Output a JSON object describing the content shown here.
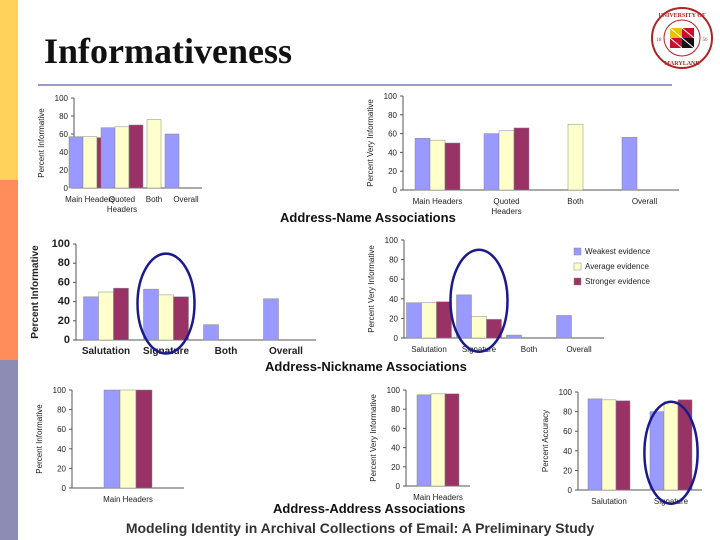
{
  "title": "Informativeness",
  "footer": "Modeling Identity in Archival Collections of Email: A Preliminary Study",
  "logo": {
    "text_top": "UNIVERSITY OF",
    "text_bottom": "MARYLAND",
    "year_left": "18",
    "year_right": "56"
  },
  "colors": {
    "blue": "#9999ff",
    "cream": "#ffffcc",
    "maroon": "#993366",
    "sidebar": [
      "#ffd25a",
      "#ff8c5a",
      "#8c8cb4"
    ],
    "rule": "#9a9acc",
    "ellipse": "#1a1a8c"
  },
  "sections": {
    "name": "Address-Name Associations",
    "nickname": "Address-Nickname Associations",
    "address": "Address-Address Associations"
  },
  "chart_data": [
    {
      "id": "c1",
      "type": "bar",
      "ylabel": "Percent Informative",
      "ylim": [
        0,
        100
      ],
      "yticks": [
        "0",
        "20",
        "40",
        "60",
        "80",
        "100"
      ],
      "categories": [
        "Main Headers",
        "Quoted Headers",
        "Both",
        "Overall"
      ],
      "series": [
        {
          "name": "Weakest evidence",
          "values": [
            57,
            67,
            0,
            60
          ]
        },
        {
          "name": "Average evidence",
          "values": [
            57,
            68,
            76,
            0
          ]
        },
        {
          "name": "Stronger evidence",
          "values": [
            56,
            70,
            0,
            0
          ]
        }
      ]
    },
    {
      "id": "c2",
      "type": "bar",
      "ylabel": "Percent Very Informative",
      "ylim": [
        0,
        100
      ],
      "yticks": [
        "0",
        "20",
        "40",
        "60",
        "80",
        "100"
      ],
      "categories": [
        "Main Headers",
        "Quoted Headers",
        "Both",
        "Overall"
      ],
      "series": [
        {
          "name": "Weakest evidence",
          "values": [
            55,
            60,
            0,
            56
          ]
        },
        {
          "name": "Average evidence",
          "values": [
            53,
            63,
            70,
            0
          ]
        },
        {
          "name": "Stronger evidence",
          "values": [
            50,
            66,
            0,
            0
          ]
        }
      ]
    },
    {
      "id": "c3",
      "type": "bar",
      "ylabel": "Percent Informative",
      "ylim": [
        0,
        100
      ],
      "yticks": [
        "0",
        "20",
        "40",
        "60",
        "80",
        "100"
      ],
      "categories": [
        "Salutation",
        "Signature",
        "Both",
        "Overall"
      ],
      "series": [
        {
          "name": "Weakest evidence",
          "values": [
            45,
            53,
            16,
            43
          ]
        },
        {
          "name": "Average evidence",
          "values": [
            50,
            47,
            0,
            0
          ]
        },
        {
          "name": "Stronger evidence",
          "values": [
            54,
            45,
            0,
            0
          ]
        }
      ]
    },
    {
      "id": "c4",
      "type": "bar",
      "ylabel": "Percent Very Informative",
      "ylim": [
        0,
        100
      ],
      "yticks": [
        "0",
        "20",
        "40",
        "60",
        "80",
        "100"
      ],
      "categories": [
        "Salutation",
        "Signature",
        "Both",
        "Overall"
      ],
      "legend": [
        "Weakest evidence",
        "Average evidence",
        "Stronger evidence"
      ],
      "series": [
        {
          "name": "Weakest evidence",
          "values": [
            36,
            44,
            3,
            23
          ]
        },
        {
          "name": "Average evidence",
          "values": [
            36,
            22,
            0,
            0
          ]
        },
        {
          "name": "Stronger evidence",
          "values": [
            37,
            19,
            0,
            0
          ]
        }
      ]
    },
    {
      "id": "c5",
      "type": "bar",
      "ylabel": "Percent Informative",
      "ylim": [
        0,
        100
      ],
      "yticks": [
        "0",
        "20",
        "40",
        "60",
        "80",
        "100"
      ],
      "categories": [
        "Main Headers"
      ],
      "series": [
        {
          "name": "Weakest evidence",
          "values": [
            100
          ]
        },
        {
          "name": "Average evidence",
          "values": [
            100
          ]
        },
        {
          "name": "Stronger evidence",
          "values": [
            100
          ]
        }
      ]
    },
    {
      "id": "c6",
      "type": "bar",
      "ylabel": "Percent Very Informative",
      "ylim": [
        0,
        100
      ],
      "yticks": [
        "0",
        "20",
        "40",
        "60",
        "80",
        "100"
      ],
      "categories": [
        "Main Headers"
      ],
      "series": [
        {
          "name": "Weakest evidence",
          "values": [
            95
          ]
        },
        {
          "name": "Average evidence",
          "values": [
            96
          ]
        },
        {
          "name": "Stronger evidence",
          "values": [
            96
          ]
        }
      ]
    },
    {
      "id": "c7",
      "type": "bar",
      "ylabel": "Percent Accuracy",
      "ylim": [
        0,
        100
      ],
      "yticks": [
        "0",
        "20",
        "40",
        "60",
        "80",
        "100"
      ],
      "categories": [
        "Salutation",
        "Signature"
      ],
      "series": [
        {
          "name": "Weakest evidence",
          "values": [
            93,
            80
          ]
        },
        {
          "name": "Average evidence",
          "values": [
            92,
            90
          ]
        },
        {
          "name": "Stronger evidence",
          "values": [
            91,
            92
          ]
        }
      ]
    }
  ]
}
